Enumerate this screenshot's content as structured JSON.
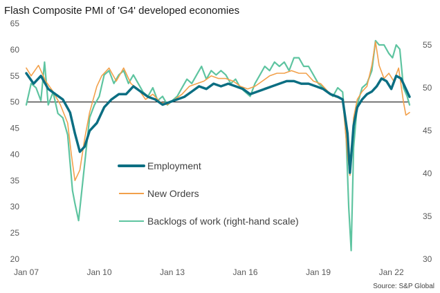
{
  "chart_data": {
    "type": "line",
    "title": "Flash Composite PMI of 'G4' developed economies",
    "source": "Source: S&P Global",
    "x_labels": [
      "Jan 07",
      "Jan 10",
      "Jan 13",
      "Jan 16",
      "Jan 19",
      "Jan 22"
    ],
    "x_range": [
      2007.0,
      2022.75
    ],
    "y_left": {
      "range": [
        20,
        65
      ],
      "ticks": [
        20,
        25,
        30,
        35,
        40,
        45,
        50,
        55,
        60,
        65
      ]
    },
    "y_right": {
      "range": [
        30,
        57.5
      ],
      "ticks": [
        30,
        35,
        40,
        45,
        50,
        55
      ]
    },
    "reference_line": 50,
    "colors": {
      "employment": "#0b6e82",
      "new_orders": "#f2a04a",
      "backlogs": "#5ec4a0",
      "axis": "#000000"
    },
    "series": [
      {
        "name": "Employment",
        "axis": "left",
        "x": [
          2007.0,
          2007.3,
          2007.6,
          2007.9,
          2008.2,
          2008.5,
          2008.8,
          2009.0,
          2009.2,
          2009.4,
          2009.6,
          2009.9,
          2010.2,
          2010.5,
          2010.8,
          2011.1,
          2011.4,
          2011.7,
          2012.0,
          2012.3,
          2012.6,
          2012.9,
          2013.2,
          2013.5,
          2013.8,
          2014.1,
          2014.4,
          2014.7,
          2015.0,
          2015.3,
          2015.6,
          2015.9,
          2016.2,
          2016.5,
          2016.8,
          2017.1,
          2017.4,
          2017.7,
          2018.0,
          2018.3,
          2018.6,
          2018.9,
          2019.2,
          2019.5,
          2019.8,
          2020.0,
          2020.2,
          2020.3,
          2020.45,
          2020.6,
          2020.8,
          2021.0,
          2021.2,
          2021.4,
          2021.6,
          2021.8,
          2022.0,
          2022.2,
          2022.4,
          2022.6,
          2022.75
        ],
        "y": [
          55.5,
          53.5,
          55.0,
          52.5,
          51.5,
          50.5,
          48.0,
          44.0,
          40.5,
          41.5,
          44.5,
          46.0,
          49.0,
          50.5,
          51.5,
          51.5,
          53.0,
          52.0,
          51.0,
          50.5,
          49.5,
          50.0,
          50.5,
          51.0,
          52.0,
          53.0,
          52.5,
          53.5,
          53.0,
          53.5,
          53.0,
          52.5,
          51.5,
          52.0,
          52.5,
          53.0,
          53.5,
          54.0,
          54.0,
          53.5,
          53.5,
          53.0,
          52.5,
          51.5,
          51.0,
          50.5,
          44.0,
          36.5,
          45.5,
          49.0,
          50.5,
          51.5,
          52.0,
          53.0,
          54.5,
          54.0,
          52.5,
          55.0,
          54.5,
          52.5,
          51.0
        ]
      },
      {
        "name": "New Orders",
        "axis": "left",
        "x": [
          2007.0,
          2007.2,
          2007.5,
          2007.8,
          2008.1,
          2008.4,
          2008.7,
          2008.85,
          2009.0,
          2009.2,
          2009.4,
          2009.6,
          2009.9,
          2010.1,
          2010.4,
          2010.7,
          2011.0,
          2011.3,
          2011.6,
          2011.9,
          2012.2,
          2012.5,
          2012.8,
          2013.1,
          2013.4,
          2013.7,
          2014.0,
          2014.3,
          2014.6,
          2014.9,
          2015.2,
          2015.5,
          2015.8,
          2016.1,
          2016.4,
          2016.7,
          2017.0,
          2017.3,
          2017.6,
          2017.9,
          2018.2,
          2018.5,
          2018.8,
          2019.1,
          2019.4,
          2019.7,
          2020.0,
          2020.2,
          2020.3,
          2020.45,
          2020.6,
          2020.8,
          2021.0,
          2021.2,
          2021.35,
          2021.5,
          2021.7,
          2021.9,
          2022.1,
          2022.3,
          2022.5,
          2022.6,
          2022.75
        ],
        "y": [
          56.5,
          55.0,
          57.0,
          54.0,
          52.0,
          49.5,
          46.0,
          40.0,
          35.0,
          37.0,
          43.0,
          48.0,
          53.0,
          55.0,
          56.5,
          54.0,
          56.5,
          53.5,
          52.5,
          50.5,
          51.5,
          50.0,
          49.5,
          50.5,
          51.5,
          53.0,
          53.5,
          54.0,
          55.0,
          54.5,
          54.5,
          54.0,
          53.0,
          52.5,
          53.0,
          54.0,
          55.0,
          55.5,
          55.5,
          56.0,
          55.5,
          55.5,
          54.0,
          53.5,
          52.0,
          51.0,
          50.5,
          40.0,
          36.0,
          47.0,
          50.5,
          52.0,
          53.0,
          57.0,
          61.5,
          57.0,
          54.5,
          55.5,
          54.0,
          56.5,
          50.0,
          47.5,
          48.0
        ]
      },
      {
        "name": "Backlogs of work (right-hand scale)",
        "axis": "right",
        "x": [
          2007.0,
          2007.2,
          2007.4,
          2007.6,
          2007.75,
          2007.9,
          2008.1,
          2008.3,
          2008.5,
          2008.7,
          2008.9,
          2009.0,
          2009.15,
          2009.3,
          2009.45,
          2009.6,
          2009.8,
          2010.0,
          2010.2,
          2010.4,
          2010.6,
          2010.8,
          2011.0,
          2011.2,
          2011.4,
          2011.6,
          2011.8,
          2012.0,
          2012.2,
          2012.4,
          2012.6,
          2012.8,
          2013.0,
          2013.2,
          2013.4,
          2013.6,
          2013.8,
          2014.0,
          2014.2,
          2014.4,
          2014.6,
          2014.8,
          2015.0,
          2015.2,
          2015.4,
          2015.6,
          2015.8,
          2016.0,
          2016.2,
          2016.4,
          2016.6,
          2016.8,
          2017.0,
          2017.2,
          2017.4,
          2017.6,
          2017.8,
          2018.0,
          2018.2,
          2018.4,
          2018.6,
          2018.8,
          2019.0,
          2019.2,
          2019.4,
          2019.6,
          2019.8,
          2020.0,
          2020.15,
          2020.25,
          2020.35,
          2020.45,
          2020.6,
          2020.8,
          2021.0,
          2021.2,
          2021.35,
          2021.5,
          2021.7,
          2021.9,
          2022.05,
          2022.2,
          2022.35,
          2022.5,
          2022.65,
          2022.75
        ],
        "y": [
          48.0,
          50.5,
          50.0,
          48.5,
          53.0,
          48.0,
          49.5,
          47.0,
          46.5,
          44.5,
          38.0,
          36.5,
          34.5,
          38.5,
          42.5,
          46.5,
          48.0,
          49.0,
          51.5,
          52.0,
          50.5,
          51.5,
          52.0,
          50.5,
          51.5,
          50.5,
          49.5,
          49.0,
          50.0,
          48.5,
          49.0,
          48.0,
          48.5,
          49.0,
          50.0,
          51.0,
          50.5,
          51.5,
          52.5,
          51.0,
          52.0,
          51.5,
          52.0,
          51.5,
          50.5,
          51.0,
          50.0,
          49.5,
          49.0,
          50.5,
          51.5,
          52.5,
          52.0,
          53.0,
          52.5,
          53.0,
          52.0,
          53.5,
          53.5,
          52.5,
          52.5,
          51.5,
          50.5,
          50.0,
          49.5,
          49.0,
          50.0,
          49.5,
          44.0,
          36.0,
          31.0,
          43.0,
          48.0,
          50.0,
          50.5,
          52.0,
          55.5,
          55.0,
          55.0,
          54.0,
          53.5,
          55.0,
          54.5,
          50.0,
          49.0,
          48.0
        ]
      }
    ],
    "legend": {
      "position": "center",
      "items": [
        {
          "label": "Employment",
          "series": 0
        },
        {
          "label": "New Orders",
          "series": 1
        },
        {
          "label": "Backlogs of work (right-hand scale)",
          "series": 2
        }
      ]
    }
  }
}
